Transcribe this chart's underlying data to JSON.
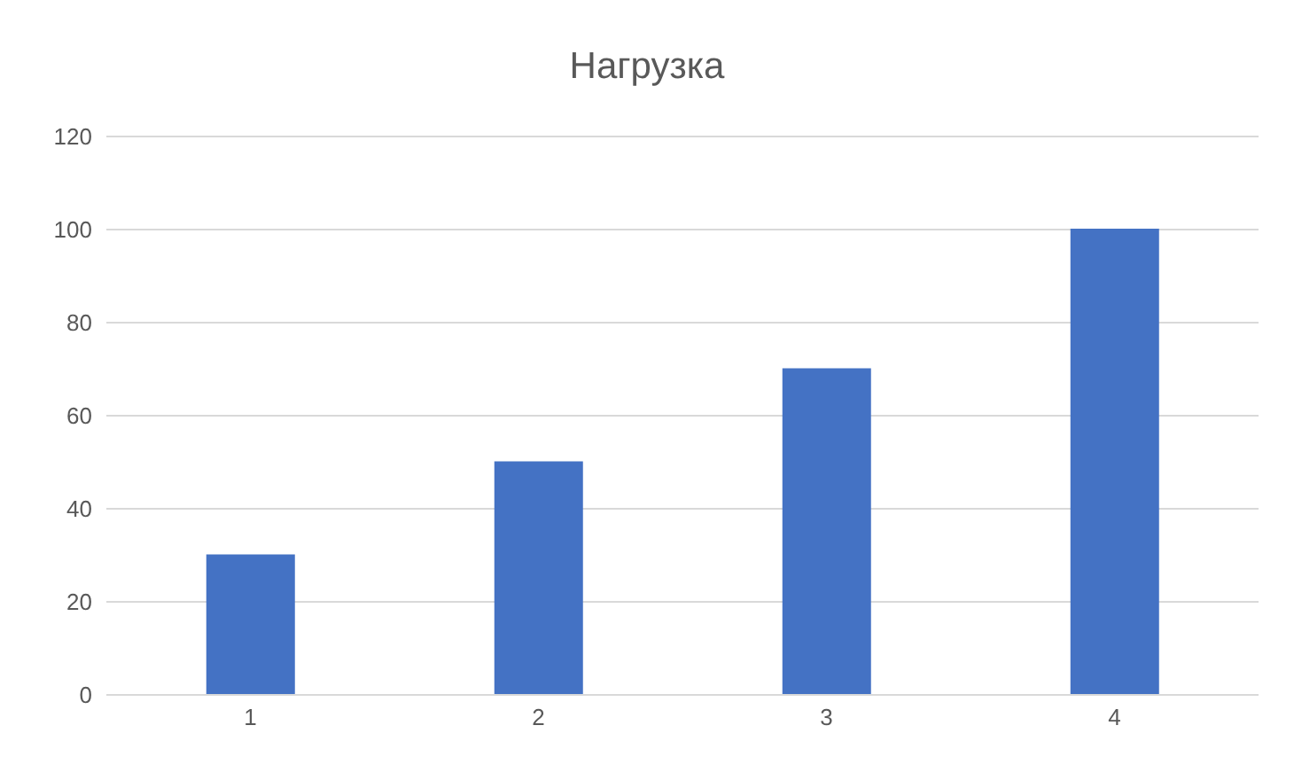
{
  "chart_data": {
    "type": "bar",
    "title": "Нагрузка",
    "categories": [
      "1",
      "2",
      "3",
      "4"
    ],
    "values": [
      30,
      50,
      70,
      100
    ],
    "color": "#4472c4",
    "ylim": [
      0,
      120
    ],
    "yticks": [
      0,
      20,
      40,
      60,
      80,
      100,
      120
    ],
    "grid": "y",
    "legend": false
  }
}
